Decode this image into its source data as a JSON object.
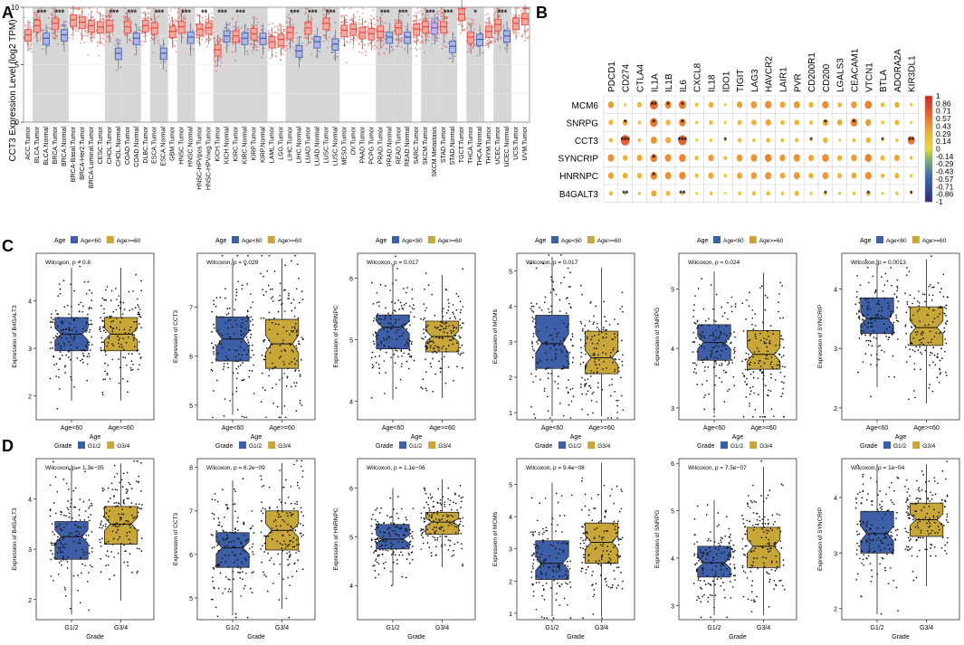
{
  "chart_data": {
    "type": "composite-figure",
    "panels": {
      "A": {
        "label": "A",
        "type": "boxplot",
        "ylabel": "CCT3 Expression Level (log2 TPM)",
        "ylim": [
          0,
          10
        ],
        "yticks": [
          "0",
          "5",
          "10"
        ],
        "categories": [
          "ACC.Tumor",
          "BLCA.Tumor",
          "BLCA.Normal",
          "BRCA.Tumor",
          "BRCA.Normal",
          "BRCA-Basal.Tumor",
          "BRCA-Her2.Tumor",
          "BRCA-Luminal.Tumor",
          "CESC.Tumor",
          "CHOL.Tumor",
          "CHOL.Normal",
          "COAD.Tumor",
          "COAD.Normal",
          "DLBC.Tumor",
          "ESCA.Tumor",
          "ESCA.Normal",
          "GBM.Tumor",
          "HNSC.Tumor",
          "HNSC.Normal",
          "HNSC-HPVpos.Tumor",
          "HNSC-HPVneg.Tumor",
          "KICH.Tumor",
          "KICH.Normal",
          "KIRC.Tumor",
          "KIRC.Normal",
          "KIRP.Tumor",
          "KIRP.Normal",
          "LAML.Tumor",
          "LGG.Tumor",
          "LIHC.Tumor",
          "LIHC.Normal",
          "LUAD.Tumor",
          "LUAD.Normal",
          "LUSC.Tumor",
          "LUSC.Normal",
          "MESO.Tumor",
          "OV.Tumor",
          "PAAD.Tumor",
          "PCPG.Tumor",
          "PRAD.Tumor",
          "PRAD.Normal",
          "READ.Tumor",
          "READ.Normal",
          "SARC.Tumor",
          "SKCM.Tumor",
          "SKCM.Metastasis",
          "STAD.Tumor",
          "STAD.Normal",
          "TGCT.Tumor",
          "THCA.Tumor",
          "THCA.Normal",
          "THYM.Tumor",
          "UCEC.Tumor",
          "UCEC.Normal",
          "UCS.Tumor",
          "UVM.Tumor"
        ],
        "medians": [
          7.6,
          8.4,
          7.3,
          8.6,
          7.6,
          8.9,
          8.7,
          8.4,
          8.3,
          8.4,
          6.0,
          8.3,
          7.3,
          8.4,
          8.2,
          6.0,
          7.9,
          8.3,
          7.4,
          8.1,
          8.2,
          6.3,
          7.5,
          7.5,
          7.3,
          7.7,
          7.3,
          7.0,
          7.2,
          7.8,
          6.2,
          8.2,
          7.0,
          8.6,
          6.8,
          8.0,
          8.1,
          7.8,
          7.7,
          7.9,
          7.4,
          8.2,
          7.4,
          8.1,
          8.3,
          8.2,
          8.3,
          6.6,
          9.4,
          7.4,
          7.2,
          7.9,
          8.5,
          7.5,
          8.6,
          9.0
        ],
        "groups": [
          "tumor",
          "tumor",
          "normal",
          "tumor",
          "normal",
          "tumor",
          "tumor",
          "tumor",
          "tumor",
          "tumor",
          "normal",
          "tumor",
          "normal",
          "tumor",
          "tumor",
          "normal",
          "tumor",
          "tumor",
          "normal",
          "tumor",
          "tumor",
          "tumor",
          "normal",
          "tumor",
          "normal",
          "tumor",
          "normal",
          "tumor",
          "tumor",
          "tumor",
          "normal",
          "tumor",
          "normal",
          "tumor",
          "normal",
          "tumor",
          "tumor",
          "tumor",
          "tumor",
          "tumor",
          "normal",
          "tumor",
          "normal",
          "tumor",
          "tumor",
          "metastasis",
          "tumor",
          "normal",
          "tumor",
          "tumor",
          "normal",
          "tumor",
          "tumor",
          "normal",
          "tumor",
          "tumor"
        ],
        "shaded_pairs": [
          [
            1,
            2
          ],
          [
            3,
            4
          ],
          [
            9,
            10
          ],
          [
            11,
            12
          ],
          [
            14,
            15
          ],
          [
            17,
            18
          ],
          [
            21,
            22
          ],
          [
            23,
            24
          ],
          [
            25,
            26
          ],
          [
            29,
            30
          ],
          [
            31,
            32
          ],
          [
            33,
            34
          ],
          [
            39,
            40
          ],
          [
            41,
            42
          ],
          [
            44,
            45
          ],
          [
            46,
            47
          ],
          [
            49,
            50
          ],
          [
            52,
            53
          ]
        ],
        "annotations": [
          {
            "index": 2,
            "text": "***"
          },
          {
            "index": 4,
            "text": "***"
          },
          {
            "index": 10,
            "text": "***"
          },
          {
            "index": 12,
            "text": "***"
          },
          {
            "index": 15,
            "text": "***"
          },
          {
            "index": 18,
            "text": "***"
          },
          {
            "index": 20,
            "text": "**"
          },
          {
            "index": 22,
            "text": "***"
          },
          {
            "index": 24,
            "text": "***"
          },
          {
            "index": 30,
            "text": "***"
          },
          {
            "index": 32,
            "text": "***"
          },
          {
            "index": 34,
            "text": "***"
          },
          {
            "index": 40,
            "text": "***"
          },
          {
            "index": 42,
            "text": "***"
          },
          {
            "index": 45,
            "text": "***"
          },
          {
            "index": 47,
            "text": "***"
          },
          {
            "index": 50,
            "text": "*"
          },
          {
            "index": 53,
            "text": "***"
          }
        ]
      },
      "B": {
        "label": "B",
        "type": "correlation-dotplot",
        "columns": [
          "PDCD1",
          "CD274",
          "CTLA4",
          "IL1A",
          "IL1B",
          "IL6",
          "CXCL8",
          "IL18",
          "IDO1",
          "TIGIT",
          "LAG3",
          "HAVCR2",
          "LAIR1",
          "PVR",
          "CD200R1",
          "CD200",
          "LGALS3",
          "CEACAM1",
          "VTCN1",
          "BTLA",
          "ADORA2A",
          "KIR3DL1"
        ],
        "rows": [
          "MCM6",
          "SNRPG",
          "CCT3",
          "SYNCRIP",
          "HNRNPC",
          "B4GALT3"
        ],
        "values": [
          [
            0.4,
            0.1,
            0.28,
            0.62,
            0.48,
            0.55,
            0.18,
            0.33,
            0.08,
            0.38,
            0.42,
            0.47,
            0.36,
            0.42,
            0.3,
            0.46,
            0.25,
            0.4,
            0.52,
            0.22,
            0.32,
            0.12
          ],
          [
            0.28,
            0.35,
            0.15,
            0.58,
            0.3,
            0.5,
            0.12,
            0.22,
            0.1,
            0.26,
            0.32,
            0.36,
            0.25,
            0.3,
            0.2,
            0.38,
            0.34,
            0.52,
            0.4,
            0.15,
            0.28,
            0.1
          ],
          [
            0.22,
            0.7,
            0.18,
            0.44,
            0.36,
            0.66,
            0.1,
            0.12,
            -0.05,
            0.2,
            0.15,
            0.24,
            0.18,
            0.2,
            0.08,
            0.3,
            -0.06,
            0.16,
            0.3,
            0.08,
            0.14,
            0.55
          ],
          [
            0.45,
            0.3,
            0.36,
            0.52,
            0.46,
            0.5,
            0.22,
            0.4,
            0.18,
            0.42,
            0.45,
            0.5,
            0.4,
            0.46,
            0.36,
            0.48,
            0.32,
            0.4,
            0.5,
            0.28,
            0.36,
            0.16
          ],
          [
            0.38,
            0.32,
            0.3,
            0.5,
            0.44,
            0.48,
            0.2,
            0.36,
            0.14,
            0.36,
            0.4,
            0.44,
            0.34,
            0.42,
            0.3,
            0.42,
            0.28,
            0.34,
            0.46,
            0.22,
            0.3,
            0.14
          ],
          [
            0.2,
            -0.1,
            0.12,
            0.35,
            0.26,
            0.15,
            0.08,
            0.16,
            0.05,
            0.16,
            0.2,
            0.22,
            0.16,
            0.26,
            0.12,
            0.16,
            -0.08,
            0.14,
            0.26,
            0.1,
            0.14,
            0.06
          ]
        ],
        "significance": [
          [
            "",
            "",
            "",
            "**",
            "*",
            "*",
            "",
            "",
            "",
            "",
            "",
            "",
            "",
            "",
            "",
            "",
            "",
            "",
            "",
            "",
            "",
            ""
          ],
          [
            "",
            "*",
            "",
            "*",
            "",
            "*",
            "",
            "",
            "",
            "",
            "",
            "",
            "",
            "",
            "",
            "*",
            "",
            "*",
            "",
            "",
            "",
            ""
          ],
          [
            "",
            "***",
            "",
            "",
            "",
            "***",
            "",
            "",
            "*",
            "",
            "",
            "",
            "",
            "",
            "*",
            "",
            "",
            "",
            "",
            "*",
            "",
            "**"
          ],
          [
            "",
            "",
            "",
            "*",
            "",
            "",
            "",
            "",
            "",
            "",
            "",
            "",
            "",
            "",
            "",
            "",
            "",
            "",
            "",
            "",
            "",
            ""
          ],
          [
            "",
            "",
            "",
            "*",
            "",
            "",
            "",
            "",
            "",
            "",
            "",
            "",
            "",
            "",
            "",
            "",
            "",
            "",
            "",
            "",
            "",
            ""
          ],
          [
            "",
            "**",
            "",
            "",
            "",
            "**",
            "",
            "",
            "",
            "",
            "",
            "",
            "",
            "",
            "",
            "*",
            "",
            "",
            "*",
            "",
            "",
            "*"
          ]
        ],
        "colorbar_ticks": [
          "1",
          "0.86",
          "0.71",
          "0.57",
          "0.43",
          "0.29",
          "0.14",
          "0",
          "-0.14",
          "-0.29",
          "-0.43",
          "-0.57",
          "-0.71",
          "-0.86",
          "-1"
        ]
      },
      "C": {
        "label": "C",
        "type": "boxplot-grid",
        "legend_title": "Age",
        "legend_items": [
          "Age<60",
          "Age>=60"
        ],
        "colors": [
          "#3d5fa8",
          "#c8a637"
        ],
        "xlabel": "Age",
        "categories": [
          "Age<60",
          "Age>=60"
        ],
        "plots": [
          {
            "gene": "B4GALT3",
            "ylabel": "Expression of B4GALT3",
            "pvalue": "Wilcoxon, p = 0.8",
            "ylim": [
              1.5,
              5.0
            ],
            "yticks": [
              2,
              3,
              4
            ],
            "stats": [
              [
                2.95,
                3.3,
                3.65
              ],
              [
                2.95,
                3.3,
                3.65
              ]
            ]
          },
          {
            "gene": "CCT3",
            "ylabel": "Expression of CCT3",
            "pvalue": "Wilcoxon, p = 0.029",
            "ylim": [
              4.7,
              8.1
            ],
            "yticks": [
              5,
              6,
              7
            ],
            "stats": [
              [
                5.9,
                6.35,
                6.8
              ],
              [
                5.75,
                6.25,
                6.75
              ]
            ]
          },
          {
            "gene": "HNRNPC",
            "ylabel": "Expression of HNRNPC",
            "pvalue": "Wilcoxon, p = 0.017",
            "ylim": [
              3.7,
              6.4
            ],
            "yticks": [
              4,
              5,
              6
            ],
            "stats": [
              [
                4.85,
                5.2,
                5.4
              ],
              [
                4.8,
                5.05,
                5.3
              ]
            ]
          },
          {
            "gene": "MCM6",
            "ylabel": "Expression of MCM6",
            "pvalue": "Wilcoxon, p = 0.017",
            "ylim": [
              0.8,
              5.5
            ],
            "yticks": [
              1,
              2,
              3,
              4,
              5
            ],
            "stats": [
              [
                2.25,
                2.95,
                3.75
              ],
              [
                2.1,
                2.55,
                3.3
              ]
            ]
          },
          {
            "gene": "SNRPG",
            "ylabel": "Expression of SNRPG",
            "pvalue": "Wilcoxon, p = 0.024",
            "ylim": [
              2.8,
              5.6
            ],
            "yticks": [
              3,
              4,
              5
            ],
            "stats": [
              [
                3.8,
                4.1,
                4.4
              ],
              [
                3.65,
                3.9,
                4.3
              ]
            ]
          },
          {
            "gene": "SYNCRIP",
            "ylabel": "Expression of SYNCRIP",
            "pvalue": "Wilcoxon, p = 0.0013",
            "ylim": [
              1.8,
              4.6
            ],
            "yticks": [
              2,
              3,
              4
            ],
            "stats": [
              [
                3.25,
                3.5,
                3.85
              ],
              [
                3.05,
                3.35,
                3.7
              ]
            ]
          }
        ]
      },
      "D": {
        "label": "D",
        "type": "boxplot-grid",
        "legend_title": "Grade",
        "legend_items": [
          "G1/2",
          "G3/4"
        ],
        "colors": [
          "#3d5fa8",
          "#c8a637"
        ],
        "xlabel": "Grade",
        "categories": [
          "G1/2",
          "G3/4"
        ],
        "plots": [
          {
            "gene": "B4GALT3",
            "ylabel": "Expression of B4GALT3",
            "pvalue": "Wilcoxon, p = 1.3e−05",
            "ylim": [
              1.6,
              4.8
            ],
            "yticks": [
              2,
              3,
              4
            ],
            "stats": [
              [
                2.8,
                3.25,
                3.55
              ],
              [
                3.1,
                3.5,
                3.85
              ]
            ]
          },
          {
            "gene": "CCT3",
            "ylabel": "Expression of CCT3",
            "pvalue": "Wilcoxon, p = 6.2e−09",
            "ylim": [
              4.5,
              8.2
            ],
            "yticks": [
              5,
              6,
              7,
              8
            ],
            "stats": [
              [
                5.7,
                6.15,
                6.5
              ],
              [
                6.1,
                6.55,
                7.0
              ]
            ]
          },
          {
            "gene": "HNRNPC",
            "ylabel": "Expression of HNRNPC",
            "pvalue": "Wilcoxon, p = 1.1e−06",
            "ylim": [
              3.3,
              6.6
            ],
            "yticks": [
              4,
              5,
              6
            ],
            "stats": [
              [
                4.75,
                4.95,
                5.25
              ],
              [
                5.05,
                5.3,
                5.5
              ]
            ]
          },
          {
            "gene": "MCM6",
            "ylabel": "Expression of MCM6",
            "pvalue": "Wilcoxon, p = 9.4e−08",
            "ylim": [
              0.8,
              5.8
            ],
            "yticks": [
              1,
              2,
              3,
              4,
              5
            ],
            "stats": [
              [
                2.05,
                2.55,
                3.25
              ],
              [
                2.55,
                3.2,
                3.8
              ]
            ]
          },
          {
            "gene": "SNRPG",
            "ylabel": "Expression of SNRPG",
            "pvalue": "Wilcoxon, p = 7.5e−07",
            "ylim": [
              2.7,
              6.1
            ],
            "yticks": [
              3,
              4,
              5,
              6
            ],
            "stats": [
              [
                3.6,
                3.9,
                4.25
              ],
              [
                3.8,
                4.25,
                4.65
              ]
            ]
          },
          {
            "gene": "SYNCRIP",
            "ylabel": "Expression of SYNCRIP",
            "pvalue": "Wilcoxon, p = 1e−04",
            "ylim": [
              1.8,
              4.7
            ],
            "yticks": [
              2,
              3,
              4
            ],
            "stats": [
              [
                3.0,
                3.35,
                3.75
              ],
              [
                3.3,
                3.6,
                3.9
              ]
            ]
          }
        ]
      }
    }
  }
}
